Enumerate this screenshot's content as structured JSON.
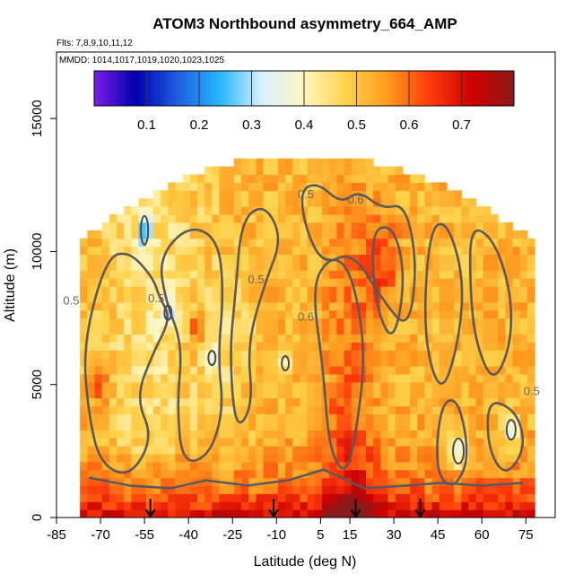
{
  "chart_data": {
    "type": "heatmap",
    "title": "ATOM3 Northbound asymmetry_664_AMP",
    "subtitle_flights": "Flts: 7,8,9,10,11,12",
    "subtitle_dates": "MMDD: 1014,1017,1019,1020,1023,1025",
    "xlabel": "Latitude (deg N)",
    "ylabel": "Altitude (m)",
    "xlim": [
      -85,
      85
    ],
    "ylim": [
      0,
      17500
    ],
    "x_ticks": [
      "-85",
      "-70",
      "-55",
      "-40",
      "-25",
      "-10",
      "5",
      "15",
      "30",
      "45",
      "60",
      "75"
    ],
    "x_tick_values": [
      -85,
      -70,
      -55,
      -40,
      -25,
      -10,
      5,
      15,
      30,
      45,
      60,
      75
    ],
    "y_ticks": [
      "0",
      "5000",
      "10000",
      "15000"
    ],
    "y_tick_values": [
      0,
      5000,
      10000,
      15000
    ],
    "colorbar": {
      "range": [
        0.0,
        0.8
      ],
      "ticks": [
        "0.1",
        "0.2",
        "0.3",
        "0.4",
        "0.5",
        "0.6",
        "0.7"
      ],
      "tick_values": [
        0.1,
        0.2,
        0.3,
        0.4,
        0.5,
        0.6,
        0.7
      ],
      "colors": [
        "#7a1fe6",
        "#0000b0",
        "#1f5fe0",
        "#25b8ff",
        "#d8f0ff",
        "#fff6c0",
        "#ffd24a",
        "#ff9a1e",
        "#ff3a0a",
        "#cc0000",
        "#8b1a1a"
      ]
    },
    "contour_labels": [
      {
        "text": "0.5",
        "lat": -80,
        "alt": 8000
      },
      {
        "text": "0.5",
        "lat": -51,
        "alt": 8100
      },
      {
        "text": "0.5",
        "lat": -17,
        "alt": 8800
      },
      {
        "text": "0.5",
        "lat": 0,
        "alt": 12000
      },
      {
        "text": "0.6",
        "lat": 17,
        "alt": 11800
      },
      {
        "text": "0.6",
        "lat": 0,
        "alt": 7400
      },
      {
        "text": "0.5",
        "lat": 77,
        "alt": 4600
      }
    ],
    "profile_arrows_lat": [
      -53,
      -11,
      17,
      39
    ],
    "coverage_note": "Curtain covers roughly lat -77 to 77 deg, alt 0 to 13500 m; mostly 0.45-0.6 aloft with high values 0.65-0.75 near the surface and in the tropics"
  }
}
